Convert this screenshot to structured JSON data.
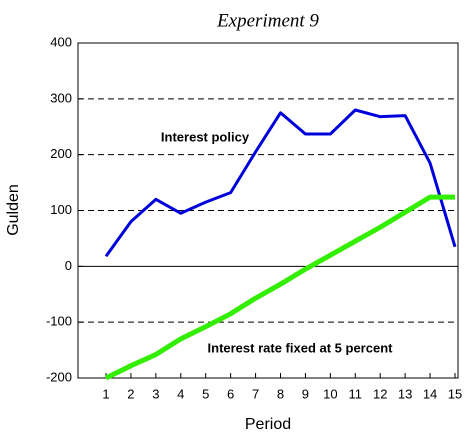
{
  "chart_data": {
    "type": "line",
    "title": "Experiment 9",
    "x_label": "Period",
    "y_label": "Gulden",
    "categories": [
      "1",
      "2",
      "3",
      "4",
      "5",
      "6",
      "7",
      "8",
      "9",
      "10",
      "11",
      "12",
      "13",
      "14",
      "15"
    ],
    "series": [
      {
        "name": "Interest policy",
        "color": "#0000dd",
        "values": [
          18,
          80,
          120,
          95,
          115,
          132,
          205,
          275,
          237,
          237,
          280,
          268,
          270,
          185,
          35
        ]
      },
      {
        "name": "Interest rate fixed at 5 percent",
        "color": "#33ee00",
        "values": [
          -200,
          -178,
          -158,
          -130,
          -108,
          -85,
          -57,
          -32,
          -5,
          20,
          45,
          70,
          97,
          124,
          124
        ]
      }
    ],
    "ylim": [
      -200,
      400
    ],
    "yticks": [
      -200,
      -100,
      0,
      100,
      200,
      300,
      400
    ],
    "grid": true
  }
}
